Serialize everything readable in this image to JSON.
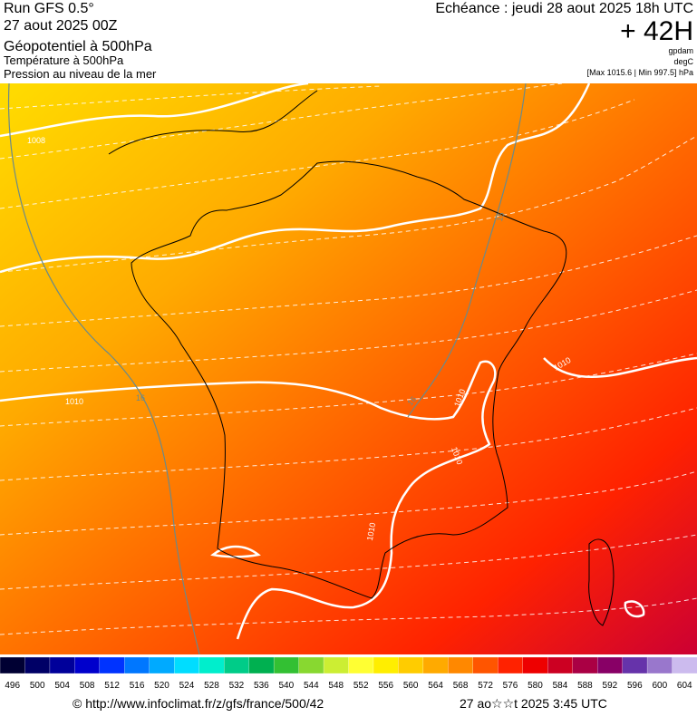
{
  "header": {
    "run": "Run GFS 0.5°",
    "run_date": "27 aout 2025 00Z",
    "title": "Géopotentiel à 500hPa",
    "subtitle_1": "Température à 500hPa",
    "subtitle_2": "Pression au niveau de la mer",
    "valid_time": "Echéance : jeudi 28 aout 2025 18h UTC",
    "lead_time": "+ 42H",
    "unit_1": "gpdam",
    "unit_2": "degC",
    "pressure_range": "[Max 1015.6 | Min 997.5] hPa"
  },
  "map": {
    "contour_labels": [
      "1008",
      "1010",
      "1010",
      "1010",
      "1010",
      "1010",
      "15",
      "16",
      "16"
    ]
  },
  "colorbar": {
    "labels": [
      496,
      500,
      504,
      508,
      512,
      516,
      520,
      524,
      528,
      532,
      536,
      540,
      544,
      548,
      552,
      556,
      560,
      564,
      568,
      572,
      576,
      580,
      584,
      588,
      592,
      596,
      600,
      604
    ],
    "colors": [
      "#000033",
      "#000066",
      "#00009a",
      "#0000cc",
      "#0033ff",
      "#0077ff",
      "#00aaff",
      "#00ddff",
      "#00eecc",
      "#00cc88",
      "#00b050",
      "#33c033",
      "#88d830",
      "#ccee33",
      "#ffff33",
      "#ffee00",
      "#ffcc00",
      "#ffaa00",
      "#ff8800",
      "#ff5500",
      "#ff2200",
      "#ee0000",
      "#cc0022",
      "#aa0044",
      "#880066",
      "#6633aa",
      "#9977cc",
      "#ccbbee"
    ]
  },
  "footer": {
    "source": "© http://www.infoclimat.fr/z/gfs/france/500/42",
    "generated": "27 ao☆☆t 2025  3:45 UTC"
  }
}
